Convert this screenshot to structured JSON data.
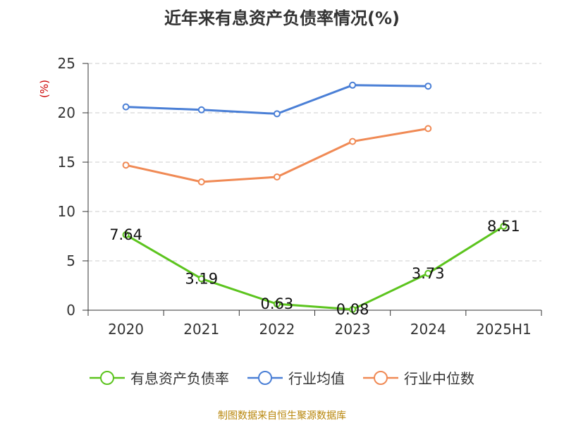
{
  "chart_data": {
    "type": "line",
    "title": "近年来有息资产负债率情况(%)",
    "ylabel": "(%)",
    "xlabel": "",
    "categories": [
      "2020",
      "2021",
      "2022",
      "2023",
      "2024",
      "2025H1"
    ],
    "ylim": [
      0,
      25
    ],
    "yticks": [
      "0",
      "5",
      "10",
      "15",
      "20",
      "25"
    ],
    "grid": true,
    "legend_position": "bottom",
    "series": [
      {
        "name": "有息资产负债率",
        "color": "#5cc41e",
        "values": [
          7.64,
          3.19,
          0.63,
          0.08,
          3.73,
          8.51
        ],
        "labels": [
          "7.64",
          "3.19",
          "0.63",
          "0.08",
          "3.73",
          "8.51"
        ]
      },
      {
        "name": "行业均值",
        "color": "#4a7fd6",
        "values": [
          20.6,
          20.3,
          19.9,
          22.8,
          22.7,
          null
        ]
      },
      {
        "name": "行业中位数",
        "color": "#f08a55",
        "values": [
          14.7,
          13.0,
          13.5,
          17.1,
          18.4,
          null
        ]
      }
    ]
  },
  "source": "制图数据来自恒生聚源数据库"
}
